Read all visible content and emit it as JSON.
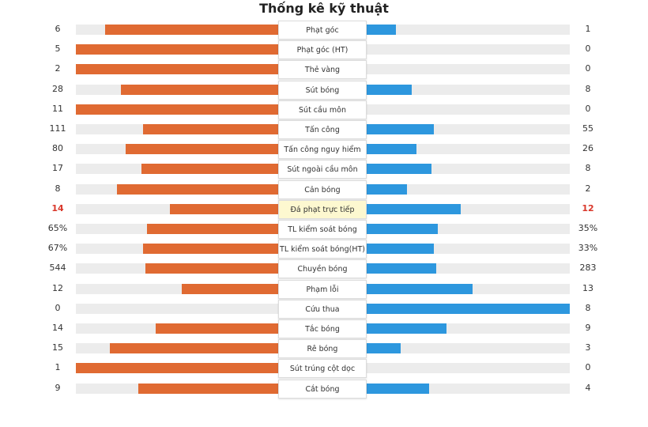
{
  "title": "Thống kê kỹ thuật",
  "colors": {
    "home": "#e06a32",
    "away": "#2d97de",
    "highlight_text": "#d9372a",
    "highlight_bg": "#fdf8d0",
    "track": "#ececec"
  },
  "chart_data": {
    "type": "bar",
    "orientation": "horizontal-diverging",
    "title": "Thống kê kỹ thuật",
    "categories": [
      "Phạt góc",
      "Phạt góc (HT)",
      "Thẻ vàng",
      "Sút bóng",
      "Sút cầu môn",
      "Tấn công",
      "Tấn công nguy hiểm",
      "Sút ngoài cầu môn",
      "Cản bóng",
      "Đá phạt trực tiếp",
      "TL kiểm soát bóng",
      "TL kiểm soát bóng(HT)",
      "Chuyền bóng",
      "Phạm lỗi",
      "Cứu thua",
      "Tắc bóng",
      "Rê bóng",
      "Sút trúng cột dọc",
      "Cắt bóng"
    ],
    "series": [
      {
        "name": "home",
        "values": [
          6,
          5,
          2,
          28,
          11,
          111,
          80,
          17,
          8,
          14,
          65,
          67,
          544,
          12,
          0,
          14,
          15,
          1,
          9
        ]
      },
      {
        "name": "away",
        "values": [
          1,
          0,
          0,
          8,
          0,
          55,
          26,
          8,
          2,
          12,
          35,
          33,
          283,
          13,
          8,
          9,
          3,
          0,
          4
        ]
      }
    ],
    "display": {
      "home": [
        "6",
        "5",
        "2",
        "28",
        "11",
        "111",
        "80",
        "17",
        "8",
        "14",
        "65%",
        "67%",
        "544",
        "12",
        "0",
        "14",
        "15",
        "1",
        "9"
      ],
      "away": [
        "1",
        "0",
        "0",
        "8",
        "0",
        "55",
        "26",
        "8",
        "2",
        "12",
        "35%",
        "33%",
        "283",
        "13",
        "8",
        "9",
        "3",
        "0",
        "4"
      ]
    },
    "highlight_index": 9
  }
}
